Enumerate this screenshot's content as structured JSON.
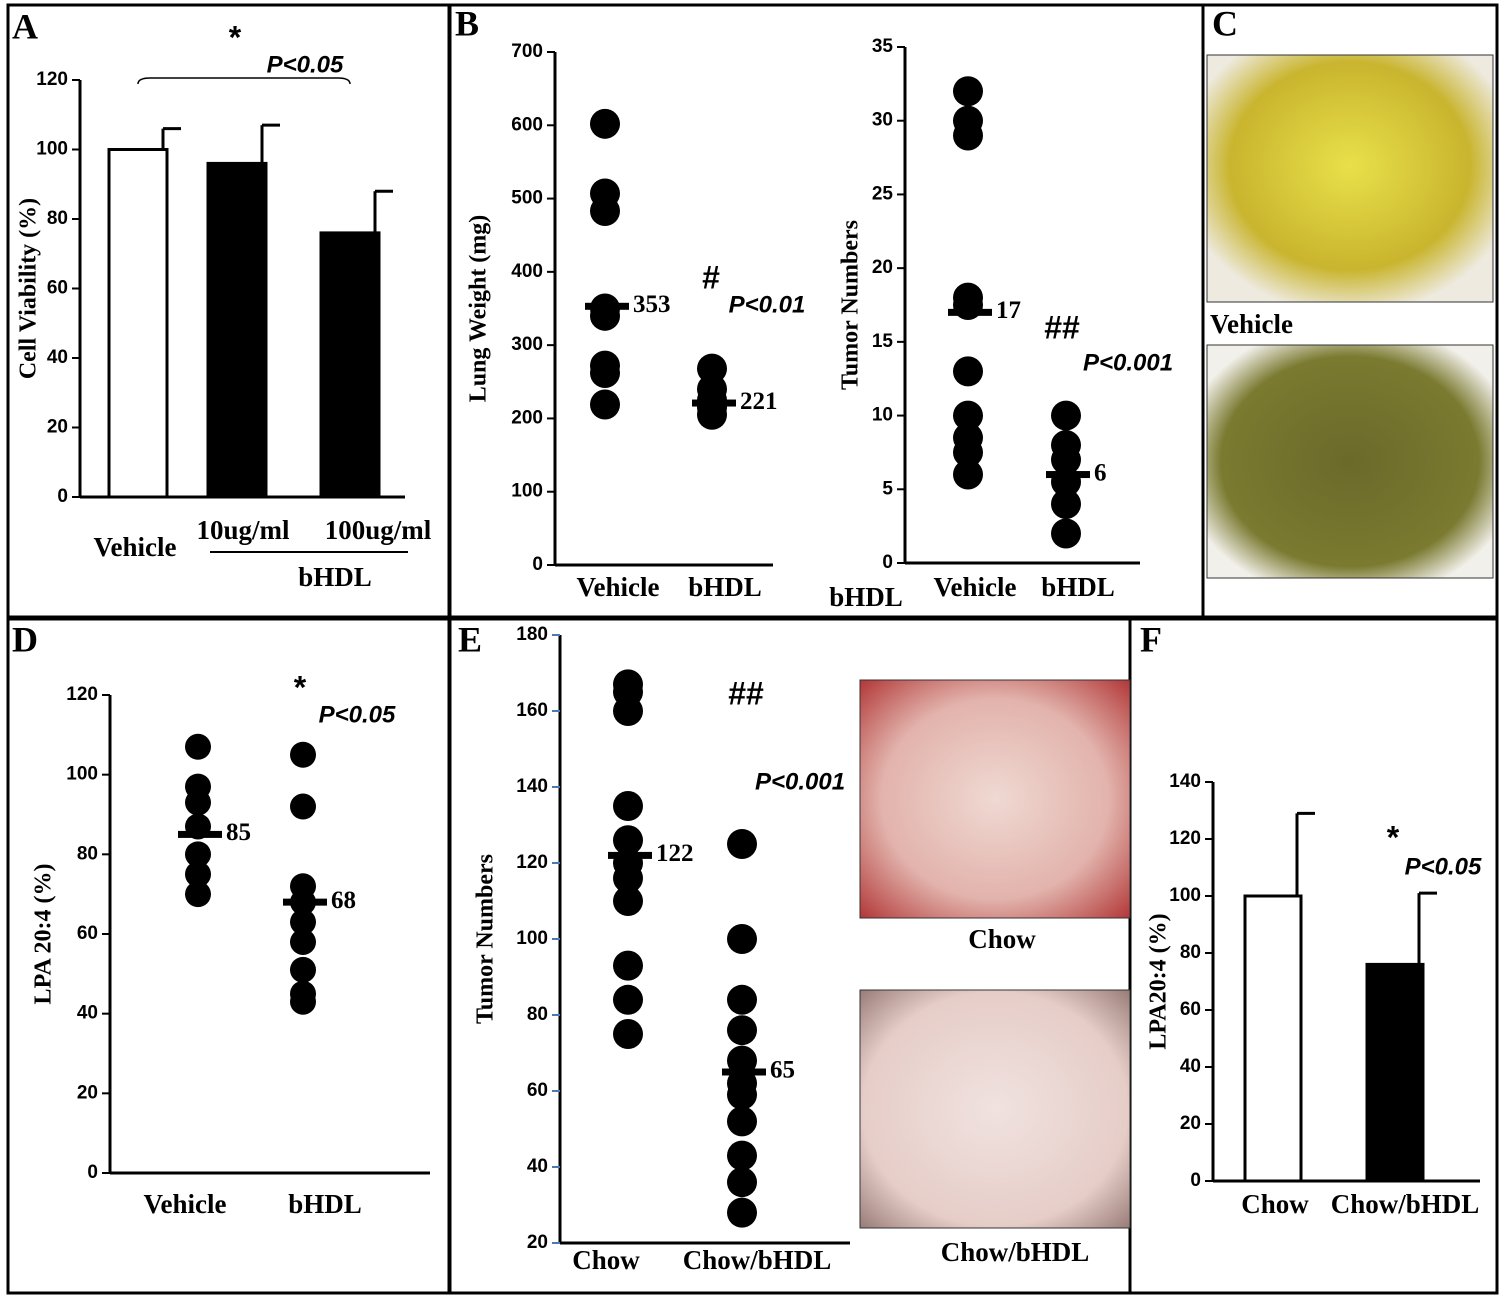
{
  "chart_data": [
    {
      "type": "bar",
      "letter": "A",
      "ylabel": "Cell Viability (%)",
      "categories": [
        "Vehicle",
        "10ug/ml",
        "100ug/ml"
      ],
      "values": [
        100,
        96,
        76
      ],
      "errors": [
        6,
        11,
        12
      ],
      "colors": [
        "#ffffff",
        "#000000",
        "#000000"
      ],
      "ylim": [
        0,
        120
      ],
      "yticks": [
        0,
        20,
        40,
        60,
        80,
        100,
        120
      ],
      "star": "*",
      "pvalue": "P<0.05",
      "group_label": "bHDL"
    },
    {
      "type": "dot",
      "letter": "B",
      "ylabel": "Lung Weight (mg)",
      "categories": [
        "Vehicle",
        "bHDL"
      ],
      "points": [
        [
          602,
          507,
          483,
          350,
          340,
          272,
          262,
          219
        ],
        [
          268,
          240,
          225,
          215,
          205
        ]
      ],
      "means": [
        353,
        221
      ],
      "ylim": [
        0,
        700
      ],
      "yticks": [
        0,
        100,
        200,
        300,
        400,
        500,
        600,
        700
      ],
      "star": "#",
      "pvalue": "P<0.01"
    },
    {
      "type": "dot",
      "ylabel": "Tumor Numbers",
      "categories": [
        "Vehicle",
        "bHDL"
      ],
      "points": [
        [
          32,
          30,
          29,
          18,
          17.5,
          13,
          10,
          8.5,
          7.5,
          6
        ],
        [
          10,
          8,
          7,
          5.5,
          4,
          2
        ]
      ],
      "means": [
        17,
        6
      ],
      "ylim": [
        0,
        35
      ],
      "yticks": [
        0,
        5,
        10,
        15,
        20,
        25,
        30,
        35
      ],
      "star": "##",
      "pvalue": "P<0.001",
      "extra_label": "bHDL"
    },
    {
      "type": "dot",
      "letter": "D",
      "ylabel": "LPA 20:4 (%)",
      "categories": [
        "Vehicle",
        "bHDL"
      ],
      "points": [
        [
          107,
          97,
          93,
          87,
          80,
          75,
          70
        ],
        [
          105,
          92,
          72,
          68,
          63,
          58,
          51,
          45,
          43
        ]
      ],
      "means": [
        85,
        68
      ],
      "ylim": [
        0,
        120
      ],
      "yticks": [
        0,
        20,
        40,
        60,
        80,
        100,
        120
      ],
      "star": "*",
      "pvalue": "P<0.05"
    },
    {
      "type": "dot",
      "letter": "E",
      "ylabel": "Tumor Numbers",
      "categories": [
        "Chow",
        "Chow/bHDL"
      ],
      "points": [
        [
          167,
          165,
          160,
          135,
          126,
          120,
          116,
          110,
          93,
          84,
          75
        ],
        [
          125,
          100,
          84,
          76,
          68,
          62,
          59,
          52,
          43,
          36,
          28
        ]
      ],
      "means": [
        122,
        65
      ],
      "ylim": [
        20,
        180
      ],
      "yticks": [
        20,
        40,
        60,
        80,
        100,
        120,
        140,
        160,
        180
      ],
      "star": "##",
      "pvalue": "P<0.001",
      "photo_labels": [
        "Chow",
        "Chow/bHDL"
      ]
    },
    {
      "type": "bar",
      "letter": "F",
      "ylabel": "LPA20:4 (%)",
      "categories": [
        "Chow",
        "Chow/bHDL"
      ],
      "values": [
        100,
        76
      ],
      "errors": [
        29,
        25
      ],
      "colors": [
        "#ffffff",
        "#000000"
      ],
      "ylim": [
        0,
        140
      ],
      "yticks": [
        0,
        20,
        40,
        60,
        80,
        100,
        120,
        140
      ],
      "star": "*",
      "pvalue": "P<0.05"
    }
  ],
  "panel_c": {
    "letter": "C",
    "label": "Vehicle"
  }
}
